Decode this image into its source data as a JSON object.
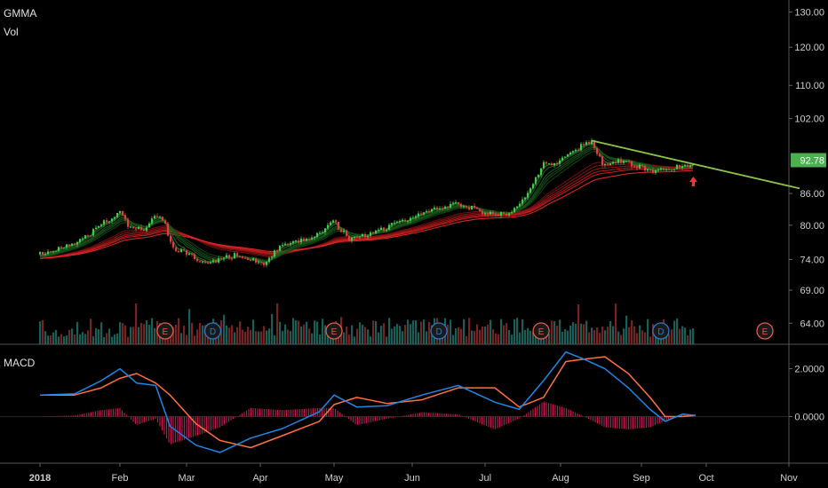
{
  "panels": {
    "price": {
      "label": "GMMA",
      "sub_label": "Vol"
    },
    "macd": {
      "label": "MACD"
    }
  },
  "chart_data": [
    {
      "type": "candlestick",
      "title": "GMMA",
      "sub_title": "Vol",
      "x_tick_labels": [
        "2018",
        "Feb",
        "Mar",
        "Apr",
        "May",
        "Jun",
        "Jul",
        "Aug",
        "Sep",
        "Oct",
        "Nov"
      ],
      "y_tick_labels": [
        "130.00",
        "120.00",
        "110.00",
        "102.00",
        "92.78",
        "86.00",
        "80.00",
        "74.00",
        "69.00",
        "64.00"
      ],
      "y_ticks": [
        130,
        120,
        110,
        102,
        86,
        80,
        74,
        69,
        64
      ],
      "y_range": [
        62,
        132
      ],
      "y_scale": "log",
      "last_price": {
        "value": 92.78,
        "label": "92.78",
        "color": "#4caf50"
      },
      "close_series": [
        {
          "date": "2018-01-02",
          "value": 75.0
        },
        {
          "date": "2018-01-10",
          "value": 76.2
        },
        {
          "date": "2018-01-18",
          "value": 77.4
        },
        {
          "date": "2018-01-26",
          "value": 80.5
        },
        {
          "date": "2018-02-01",
          "value": 82.3
        },
        {
          "date": "2018-02-06",
          "value": 79.0
        },
        {
          "date": "2018-02-12",
          "value": 79.5
        },
        {
          "date": "2018-02-16",
          "value": 82.0
        },
        {
          "date": "2018-02-20",
          "value": 80.0
        },
        {
          "date": "2018-02-23",
          "value": 76.0
        },
        {
          "date": "2018-03-01",
          "value": 75.0
        },
        {
          "date": "2018-03-08",
          "value": 73.3
        },
        {
          "date": "2018-03-15",
          "value": 74.0
        },
        {
          "date": "2018-03-22",
          "value": 74.8
        },
        {
          "date": "2018-04-02",
          "value": 73.3
        },
        {
          "date": "2018-04-09",
          "value": 76.0
        },
        {
          "date": "2018-04-16",
          "value": 77.0
        },
        {
          "date": "2018-04-23",
          "value": 78.0
        },
        {
          "date": "2018-05-01",
          "value": 80.6
        },
        {
          "date": "2018-05-07",
          "value": 77.5
        },
        {
          "date": "2018-05-14",
          "value": 78.2
        },
        {
          "date": "2018-05-21",
          "value": 79.5
        },
        {
          "date": "2018-06-01",
          "value": 81.5
        },
        {
          "date": "2018-06-11",
          "value": 83.0
        },
        {
          "date": "2018-06-20",
          "value": 84.0
        },
        {
          "date": "2018-06-27",
          "value": 83.0
        },
        {
          "date": "2018-07-05",
          "value": 81.8
        },
        {
          "date": "2018-07-12",
          "value": 82.5
        },
        {
          "date": "2018-07-19",
          "value": 86.0
        },
        {
          "date": "2018-07-25",
          "value": 92.0
        },
        {
          "date": "2018-08-01",
          "value": 92.5
        },
        {
          "date": "2018-08-08",
          "value": 95.5
        },
        {
          "date": "2018-08-13",
          "value": 97.0
        },
        {
          "date": "2018-08-17",
          "value": 92.0
        },
        {
          "date": "2018-08-24",
          "value": 92.5
        },
        {
          "date": "2018-08-31",
          "value": 91.5
        },
        {
          "date": "2018-09-07",
          "value": 90.5
        },
        {
          "date": "2018-09-14",
          "value": 91.0
        },
        {
          "date": "2018-09-21",
          "value": 91.5
        },
        {
          "date": "2018-09-26",
          "value": 92.78
        }
      ],
      "trendline": {
        "color": "#8bc34a",
        "points": [
          {
            "date": "2018-08-13",
            "value": 97.0
          },
          {
            "date": "2018-11-05",
            "value": 87.0
          }
        ]
      },
      "event_markers": [
        {
          "label": "E",
          "date": "2018-02-20",
          "color": "#e25a4a"
        },
        {
          "label": "D",
          "date": "2018-03-12",
          "color": "#2a7ac4"
        },
        {
          "label": "E",
          "date": "2018-05-01",
          "color": "#e25a4a"
        },
        {
          "label": "D",
          "date": "2018-06-12",
          "color": "#2a7ac4"
        },
        {
          "label": "E",
          "date": "2018-07-24",
          "color": "#e25a4a"
        },
        {
          "label": "D",
          "date": "2018-09-10",
          "color": "#2a7ac4"
        },
        {
          "label": "E",
          "date": "2018-10-23",
          "color": "#e25a4a"
        }
      ],
      "signal_arrow": {
        "date": "2018-09-25",
        "direction": "up",
        "color": "#e53935"
      }
    },
    {
      "type": "line",
      "title": "MACD",
      "y_tick_labels": [
        "2.0000",
        "0.0000"
      ],
      "y_ticks": [
        2.0,
        0.0
      ],
      "y_range": [
        -1.8,
        2.8
      ],
      "macd_color": "#1e88e5",
      "signal_color": "#ff7043",
      "histogram_color": "#e91e63",
      "macd_series": [
        {
          "date": "2018-01-02",
          "value": 0.9
        },
        {
          "date": "2018-01-15",
          "value": 0.95
        },
        {
          "date": "2018-01-25",
          "value": 1.5
        },
        {
          "date": "2018-02-01",
          "value": 2.0
        },
        {
          "date": "2018-02-08",
          "value": 1.4
        },
        {
          "date": "2018-02-16",
          "value": 1.3
        },
        {
          "date": "2018-02-22",
          "value": -0.4
        },
        {
          "date": "2018-03-05",
          "value": -1.2
        },
        {
          "date": "2018-03-15",
          "value": -1.5
        },
        {
          "date": "2018-03-28",
          "value": -0.9
        },
        {
          "date": "2018-04-10",
          "value": -0.5
        },
        {
          "date": "2018-04-25",
          "value": 0.2
        },
        {
          "date": "2018-05-01",
          "value": 0.9
        },
        {
          "date": "2018-05-10",
          "value": 0.4
        },
        {
          "date": "2018-05-22",
          "value": 0.45
        },
        {
          "date": "2018-06-05",
          "value": 0.9
        },
        {
          "date": "2018-06-20",
          "value": 1.3
        },
        {
          "date": "2018-07-05",
          "value": 0.6
        },
        {
          "date": "2018-07-15",
          "value": 0.3
        },
        {
          "date": "2018-07-25",
          "value": 1.5
        },
        {
          "date": "2018-08-03",
          "value": 2.7
        },
        {
          "date": "2018-08-10",
          "value": 2.4
        },
        {
          "date": "2018-08-18",
          "value": 2.0
        },
        {
          "date": "2018-08-27",
          "value": 1.2
        },
        {
          "date": "2018-09-05",
          "value": 0.3
        },
        {
          "date": "2018-09-12",
          "value": -0.2
        },
        {
          "date": "2018-09-20",
          "value": 0.1
        },
        {
          "date": "2018-09-26",
          "value": 0.05
        }
      ],
      "signal_series": [
        {
          "date": "2018-01-02",
          "value": 0.9
        },
        {
          "date": "2018-01-15",
          "value": 0.9
        },
        {
          "date": "2018-01-25",
          "value": 1.2
        },
        {
          "date": "2018-02-01",
          "value": 1.6
        },
        {
          "date": "2018-02-08",
          "value": 1.8
        },
        {
          "date": "2018-02-16",
          "value": 1.4
        },
        {
          "date": "2018-02-22",
          "value": 0.9
        },
        {
          "date": "2018-03-05",
          "value": -0.3
        },
        {
          "date": "2018-03-15",
          "value": -1.0
        },
        {
          "date": "2018-03-28",
          "value": -1.3
        },
        {
          "date": "2018-04-10",
          "value": -0.8
        },
        {
          "date": "2018-04-25",
          "value": -0.2
        },
        {
          "date": "2018-05-01",
          "value": 0.5
        },
        {
          "date": "2018-05-10",
          "value": 0.8
        },
        {
          "date": "2018-05-22",
          "value": 0.55
        },
        {
          "date": "2018-06-05",
          "value": 0.7
        },
        {
          "date": "2018-06-20",
          "value": 1.2
        },
        {
          "date": "2018-07-05",
          "value": 1.2
        },
        {
          "date": "2018-07-15",
          "value": 0.4
        },
        {
          "date": "2018-07-25",
          "value": 0.8
        },
        {
          "date": "2018-08-03",
          "value": 2.3
        },
        {
          "date": "2018-08-10",
          "value": 2.4
        },
        {
          "date": "2018-08-18",
          "value": 2.5
        },
        {
          "date": "2018-08-27",
          "value": 1.8
        },
        {
          "date": "2018-09-05",
          "value": 0.8
        },
        {
          "date": "2018-09-12",
          "value": 0.0
        },
        {
          "date": "2018-09-20",
          "value": 0.0
        },
        {
          "date": "2018-09-26",
          "value": 0.05
        }
      ]
    }
  ]
}
